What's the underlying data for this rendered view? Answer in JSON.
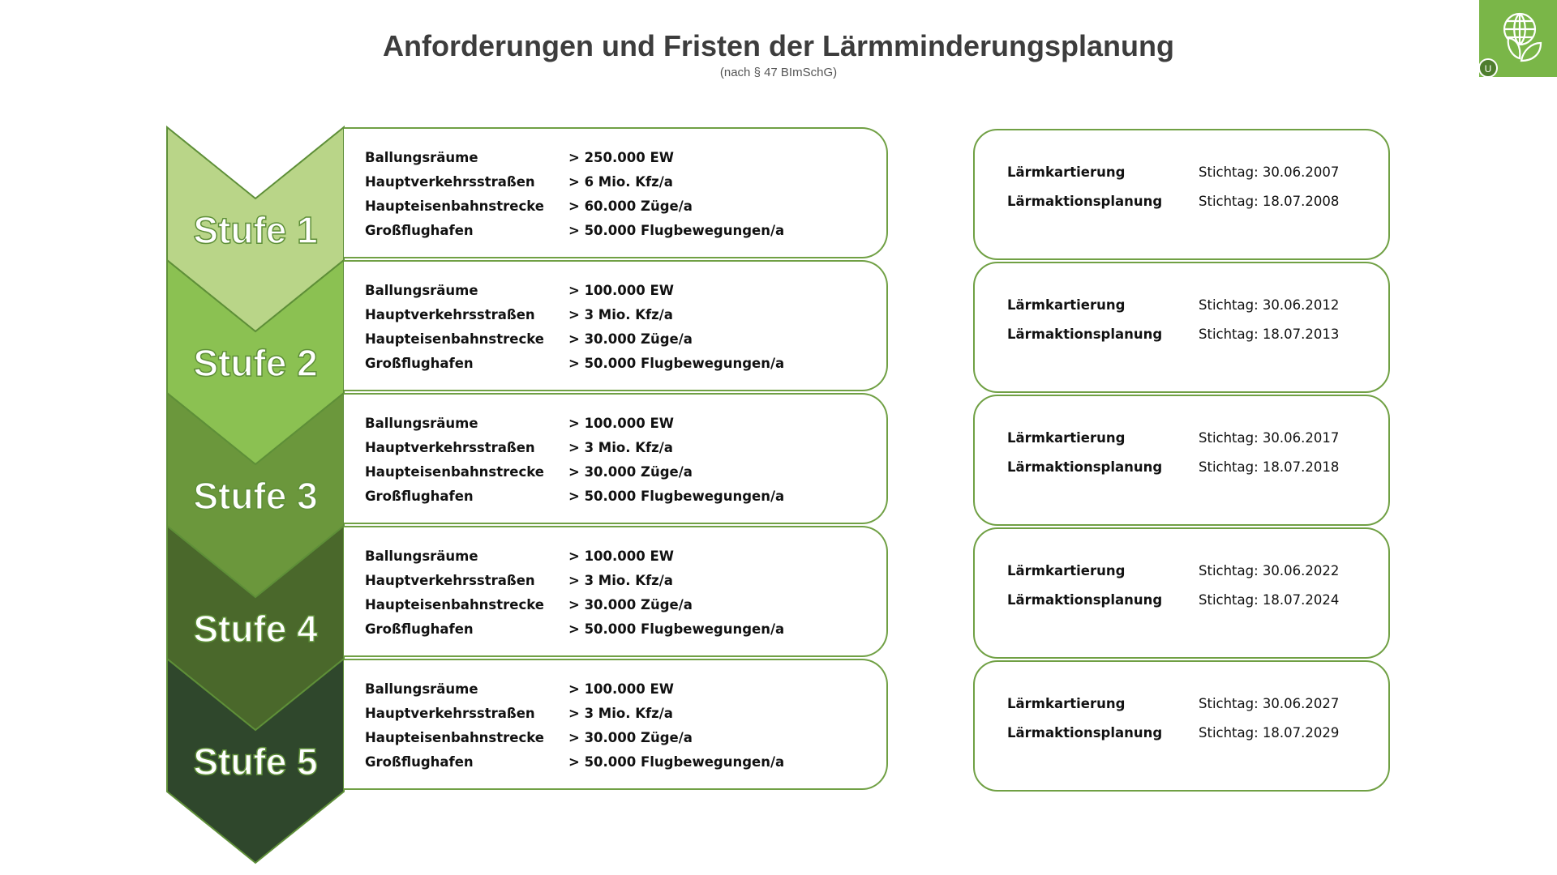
{
  "header": {
    "title": "Anforderungen und Fristen der Lärmminderungsplanung",
    "subtitle": "(nach § 47 BImSchG)"
  },
  "logo": {
    "icon": "globe-leaves-icon",
    "badge": "U",
    "color": "#7ab648"
  },
  "stages": [
    {
      "label": "Stufe 1",
      "color": "#b9d588",
      "criteria": [
        {
          "name": "Ballungsräume",
          "threshold": "> 250.000 EW"
        },
        {
          "name": "Hauptverkehrsstraßen",
          "threshold": "> 6 Mio. Kfz/a"
        },
        {
          "name": "Haupteisenbahnstrecke",
          "threshold": "> 60.000 Züge/a"
        },
        {
          "name": "Großflughafen",
          "threshold": "> 50.000 Flugbewegungen/a"
        }
      ],
      "deadlines": [
        {
          "name": "Lärmkartierung",
          "date": "Stichtag: 30.06.2007"
        },
        {
          "name": "Lärmaktionsplanung",
          "date": "Stichtag: 18.07.2008"
        }
      ]
    },
    {
      "label": "Stufe 2",
      "color": "#8bc152",
      "criteria": [
        {
          "name": "Ballungsräume",
          "threshold": "> 100.000 EW"
        },
        {
          "name": "Hauptverkehrsstraßen",
          "threshold": "> 3 Mio. Kfz/a"
        },
        {
          "name": "Haupteisenbahnstrecke",
          "threshold": "> 30.000 Züge/a"
        },
        {
          "name": "Großflughafen",
          "threshold": "> 50.000 Flugbewegungen/a"
        }
      ],
      "deadlines": [
        {
          "name": "Lärmkartierung",
          "date": "Stichtag: 30.06.2012"
        },
        {
          "name": "Lärmaktionsplanung",
          "date": "Stichtag: 18.07.2013"
        }
      ]
    },
    {
      "label": "Stufe 3",
      "color": "#6b973c",
      "criteria": [
        {
          "name": "Ballungsräume",
          "threshold": "> 100.000 EW"
        },
        {
          "name": "Hauptverkehrsstraßen",
          "threshold": "> 3 Mio. Kfz/a"
        },
        {
          "name": "Haupteisenbahnstrecke",
          "threshold": "> 30.000 Züge/a"
        },
        {
          "name": "Großflughafen",
          "threshold": "> 50.000 Flugbewegungen/a"
        }
      ],
      "deadlines": [
        {
          "name": "Lärmkartierung",
          "date": "Stichtag: 30.06.2017"
        },
        {
          "name": "Lärmaktionsplanung",
          "date": "Stichtag: 18.07.2018"
        }
      ]
    },
    {
      "label": "Stufe 4",
      "color": "#4a682b",
      "criteria": [
        {
          "name": "Ballungsräume",
          "threshold": "> 100.000 EW"
        },
        {
          "name": "Hauptverkehrsstraßen",
          "threshold": "> 3 Mio. Kfz/a"
        },
        {
          "name": "Haupteisenbahnstrecke",
          "threshold": "> 30.000 Züge/a"
        },
        {
          "name": "Großflughafen",
          "threshold": "> 50.000 Flugbewegungen/a"
        }
      ],
      "deadlines": [
        {
          "name": "Lärmkartierung",
          "date": "Stichtag: 30.06.2022"
        },
        {
          "name": "Lärmaktionsplanung",
          "date": "Stichtag: 18.07.2024"
        }
      ]
    },
    {
      "label": "Stufe 5",
      "color": "#2f472c",
      "criteria": [
        {
          "name": "Ballungsräume",
          "threshold": "> 100.000 EW"
        },
        {
          "name": "Hauptverkehrsstraßen",
          "threshold": "> 3 Mio. Kfz/a"
        },
        {
          "name": "Haupteisenbahnstrecke",
          "threshold": "> 30.000 Züge/a"
        },
        {
          "name": "Großflughafen",
          "threshold": "> 50.000 Flugbewegungen/a"
        }
      ],
      "deadlines": [
        {
          "name": "Lärmkartierung",
          "date": "Stichtag: 30.06.2027"
        },
        {
          "name": "Lärmaktionsplanung",
          "date": "Stichtag: 18.07.2029"
        }
      ]
    }
  ]
}
